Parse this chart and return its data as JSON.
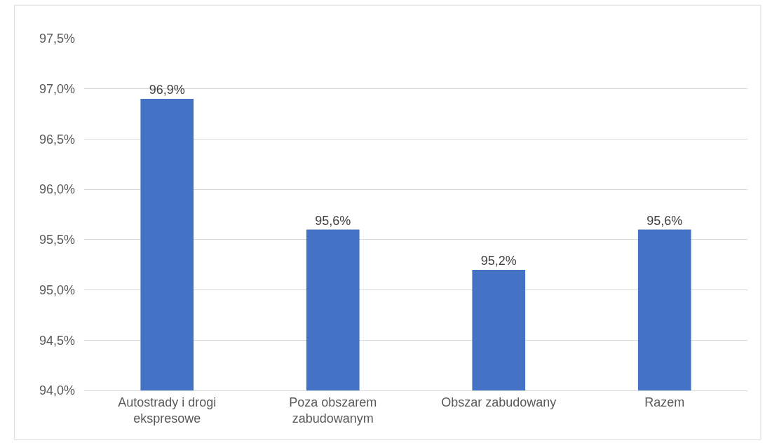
{
  "chart_data": {
    "type": "bar",
    "categories": [
      "Autostrady i drogi ekspresowe",
      "Poza obszarem zabudowanym",
      "Obszar zabudowany",
      "Razem"
    ],
    "values": [
      96.9,
      95.6,
      95.2,
      95.6
    ],
    "value_labels": [
      "96,9%",
      "95,6%",
      "95,2%",
      "95,6%"
    ],
    "color": "#4472c4",
    "ylim": [
      94.0,
      97.5
    ],
    "yticks": [
      {
        "value": 94.0,
        "label": "94,0%"
      },
      {
        "value": 94.5,
        "label": "94,5%"
      },
      {
        "value": 95.0,
        "label": "95,0%"
      },
      {
        "value": 95.5,
        "label": "95,5%"
      },
      {
        "value": 96.0,
        "label": "96,0%"
      },
      {
        "value": 96.5,
        "label": "96,5%"
      },
      {
        "value": 97.0,
        "label": "97,0%"
      },
      {
        "value": 97.5,
        "label": "97,5%"
      }
    ],
    "grid": "y",
    "legend": false
  }
}
